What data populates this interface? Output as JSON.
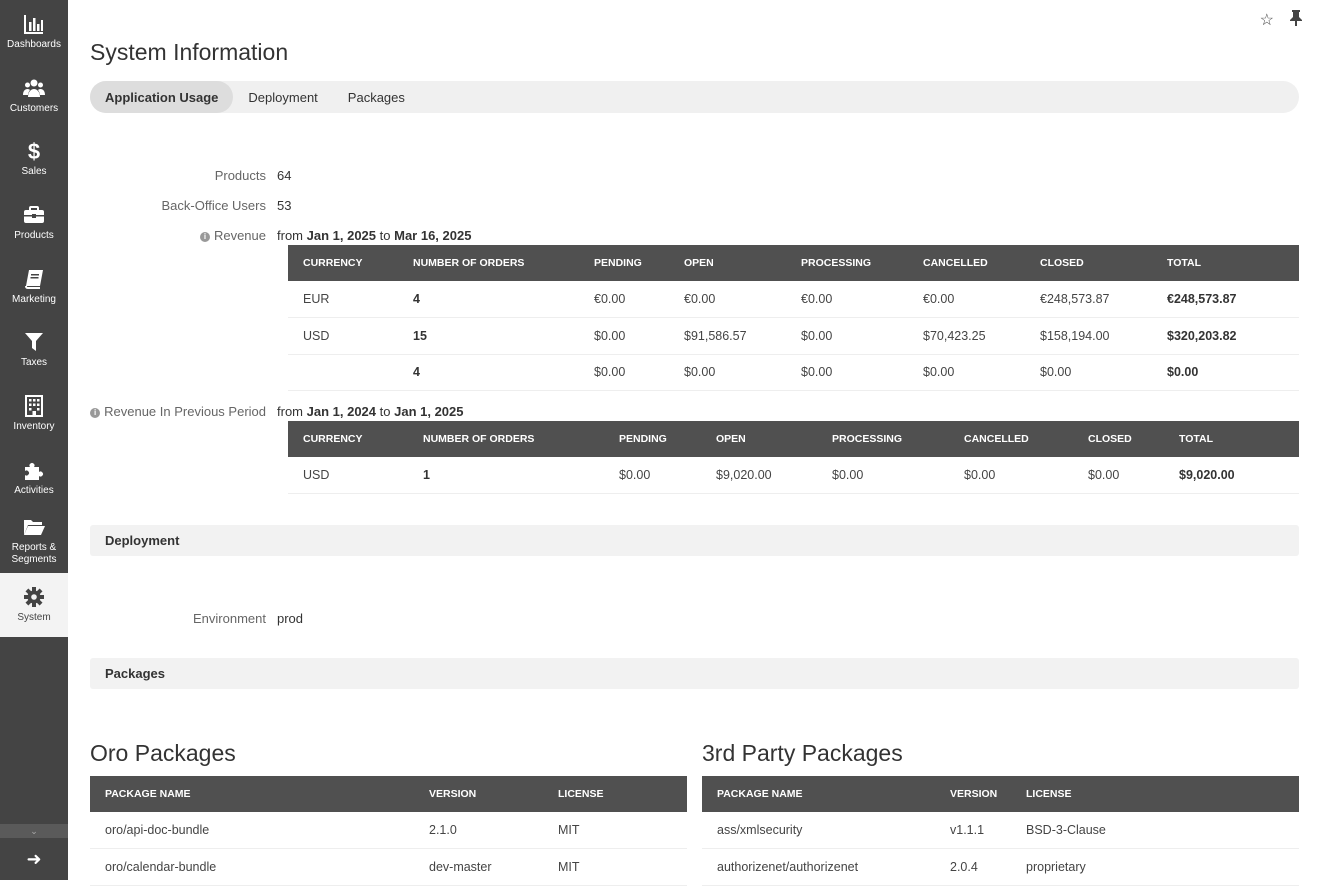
{
  "sidebar": {
    "items": [
      {
        "label": "Dashboards",
        "icon": "bar-chart-icon"
      },
      {
        "label": "Customers",
        "icon": "users-icon"
      },
      {
        "label": "Sales",
        "icon": "dollar-icon"
      },
      {
        "label": "Products",
        "icon": "briefcase-icon"
      },
      {
        "label": "Marketing",
        "icon": "book-icon"
      },
      {
        "label": "Taxes",
        "icon": "filter-icon"
      },
      {
        "label": "Inventory",
        "icon": "building-icon"
      },
      {
        "label": "Activities",
        "icon": "puzzle-icon"
      },
      {
        "label": "Reports &",
        "label2": "Segments",
        "icon": "folder-open-icon"
      },
      {
        "label": "System",
        "icon": "gear-icon"
      }
    ],
    "collapse_glyph": "⌄",
    "expand_glyph": "➜"
  },
  "top_icons": {
    "star": "☆",
    "pin": "📌"
  },
  "page_title": "System Information",
  "tabs": [
    {
      "label": "Application Usage",
      "active": true
    },
    {
      "label": "Deployment"
    },
    {
      "label": "Packages"
    }
  ],
  "usage": {
    "products_label": "Products",
    "products_value": "64",
    "users_label": "Back-Office Users",
    "users_value": "53",
    "revenue_label": "Revenue",
    "revenue_from_word": "from",
    "revenue_from": "Jan 1, 2025",
    "revenue_to_word": "to",
    "revenue_to": "Mar 16, 2025",
    "prev_label": "Revenue In Previous Period",
    "prev_from": "Jan 1, 2024",
    "prev_to": "Jan 1, 2025"
  },
  "revenue_table": {
    "headers": [
      "CURRENCY",
      "NUMBER OF ORDERS",
      "PENDING",
      "OPEN",
      "PROCESSING",
      "CANCELLED",
      "CLOSED",
      "TOTAL"
    ],
    "rows": [
      [
        "EUR",
        "4",
        "€0.00",
        "€0.00",
        "€0.00",
        "€0.00",
        "€248,573.87",
        "€248,573.87"
      ],
      [
        "USD",
        "15",
        "$0.00",
        "$91,586.57",
        "$0.00",
        "$70,423.25",
        "$158,194.00",
        "$320,203.82"
      ],
      [
        "",
        "4",
        "$0.00",
        "$0.00",
        "$0.00",
        "$0.00",
        "$0.00",
        "$0.00"
      ]
    ]
  },
  "prev_table": {
    "headers": [
      "CURRENCY",
      "NUMBER OF ORDERS",
      "PENDING",
      "OPEN",
      "PROCESSING",
      "CANCELLED",
      "CLOSED",
      "TOTAL"
    ],
    "rows": [
      [
        "USD",
        "1",
        "$0.00",
        "$9,020.00",
        "$0.00",
        "$0.00",
        "$0.00",
        "$9,020.00"
      ]
    ]
  },
  "deployment": {
    "section_title": "Deployment",
    "env_label": "Environment",
    "env_value": "prod"
  },
  "packages": {
    "section_title": "Packages",
    "oro_title": "Oro Packages",
    "third_title": "3rd Party Packages",
    "headers": [
      "PACKAGE NAME",
      "VERSION",
      "LICENSE"
    ],
    "oro_rows": [
      [
        "oro/api-doc-bundle",
        "2.1.0",
        "MIT"
      ],
      [
        "oro/calendar-bundle",
        "dev-master",
        "MIT"
      ]
    ],
    "third_rows": [
      [
        "ass/xmlsecurity",
        "v1.1.1",
        "BSD-3-Clause"
      ],
      [
        "authorizenet/authorizenet",
        "2.0.4",
        "proprietary"
      ]
    ]
  }
}
